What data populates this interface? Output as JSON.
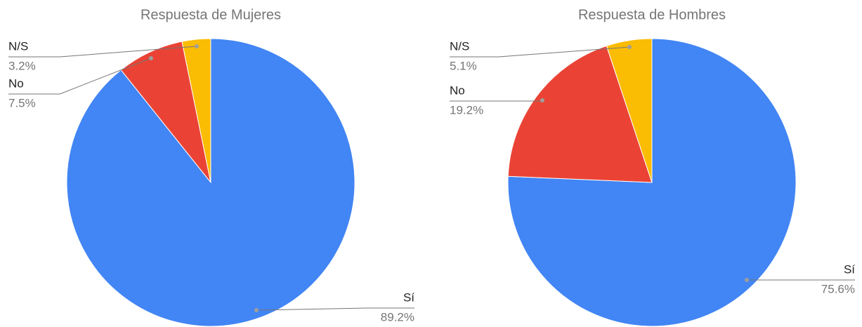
{
  "chart_data": [
    {
      "type": "pie",
      "title": "Respuesta de Mujeres",
      "categories": [
        "Sí",
        "No",
        "N/S"
      ],
      "values": [
        89.2,
        7.5,
        3.2
      ],
      "value_labels": [
        "89.2%",
        "7.5%",
        "3.2%"
      ],
      "colors": [
        "#4285f4",
        "#ea4335",
        "#fbbc04"
      ]
    },
    {
      "type": "pie",
      "title": "Respuesta de Hombres",
      "categories": [
        "Sí",
        "No",
        "N/S"
      ],
      "values": [
        75.6,
        19.2,
        5.1
      ],
      "value_labels": [
        "75.6%",
        "19.2%",
        "5.1%"
      ],
      "colors": [
        "#4285f4",
        "#ea4335",
        "#fbbc04"
      ]
    }
  ]
}
